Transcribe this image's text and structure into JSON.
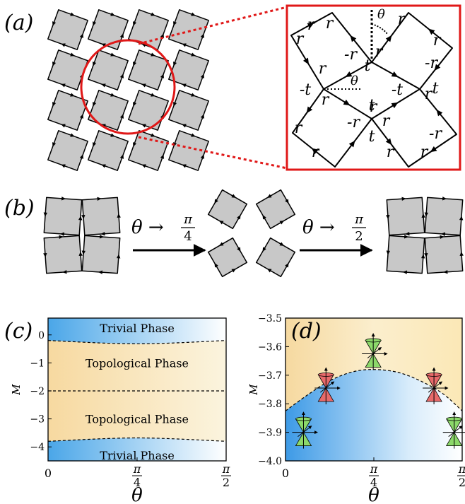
{
  "panel_labels": {
    "a": "(a)",
    "b": "(b)",
    "c": "(c)",
    "d": "(d)"
  },
  "zoom": {
    "labels": [
      "r",
      "r",
      "r",
      "r",
      "-r",
      "r",
      "r",
      "-r",
      "r",
      "t",
      "-t",
      "r",
      "t",
      "-t",
      "r",
      "t",
      "r",
      "-r",
      "r",
      "r",
      "t",
      "-r",
      "r",
      "r",
      "r"
    ],
    "theta": "θ"
  },
  "panel_b": {
    "arrow1_label": "θ → π/4",
    "arrow2_label": "θ → π/2",
    "arrow1_prefix": "θ →",
    "arrow1_num": "π",
    "arrow1_den": "4",
    "arrow2_prefix": "θ →",
    "arrow2_num": "π",
    "arrow2_den": "2"
  },
  "colors": {
    "tile": "#c8c8c8",
    "edge": "#000000",
    "highlight": "#e01818",
    "trivial": "#4aa6e8",
    "topological": "#f7dca0",
    "cone_red": "#e86a6a",
    "cone_green": "#8cd86a"
  },
  "chart_data": [
    {
      "type": "area",
      "panel": "c",
      "xlabel": "θ",
      "ylabel": "M",
      "xlim": [
        0,
        1.5708
      ],
      "ylim": [
        -4.5,
        0.6
      ],
      "x_ticks": [
        "0",
        "π/4",
        "π/2"
      ],
      "y_ticks": [
        "0",
        "−1",
        "−2",
        "−3",
        "−4"
      ],
      "regions": [
        {
          "label": "Trivial Phase",
          "phase": "trivial"
        },
        {
          "label": "Topological Phase",
          "phase": "topological"
        },
        {
          "label": "Topological Phase",
          "phase": "topological"
        },
        {
          "label": "Trivial Phase",
          "phase": "trivial"
        }
      ],
      "boundaries": [
        {
          "x": [
            0,
            0.785,
            1.5708
          ],
          "y": [
            -0.2,
            -0.32,
            -0.2
          ]
        },
        {
          "x": [
            0,
            1.5708
          ],
          "y": [
            -2.0,
            -2.0
          ]
        },
        {
          "x": [
            0,
            0.785,
            1.5708
          ],
          "y": [
            -3.8,
            -3.68,
            -3.8
          ]
        }
      ]
    },
    {
      "type": "area",
      "panel": "d",
      "xlabel": "θ",
      "ylabel": "M",
      "xlim": [
        0,
        1.5708
      ],
      "ylim": [
        -4.0,
        -3.5
      ],
      "x_ticks": [
        "0",
        "π/4",
        "π/2"
      ],
      "y_ticks": [
        "−3.5",
        "−3.6",
        "−3.7",
        "−3.8",
        "−3.9",
        "−4.0"
      ],
      "boundary": {
        "x": [
          0,
          0.2,
          0.4,
          0.6,
          0.785,
          1.0,
          1.2,
          1.4,
          1.5708
        ],
        "y": [
          -3.825,
          -3.768,
          -3.718,
          -3.688,
          -3.68,
          -3.69,
          -3.72,
          -3.765,
          -3.825
        ]
      },
      "cones": [
        {
          "x": 0.36,
          "M": -3.745,
          "type": "red"
        },
        {
          "x": 0.78,
          "M": -3.625,
          "type": "green"
        },
        {
          "x": 1.32,
          "M": -3.745,
          "type": "red"
        },
        {
          "x": 0.16,
          "M": -3.9,
          "type": "green"
        },
        {
          "x": 1.5,
          "M": -3.9,
          "type": "green"
        }
      ]
    }
  ]
}
